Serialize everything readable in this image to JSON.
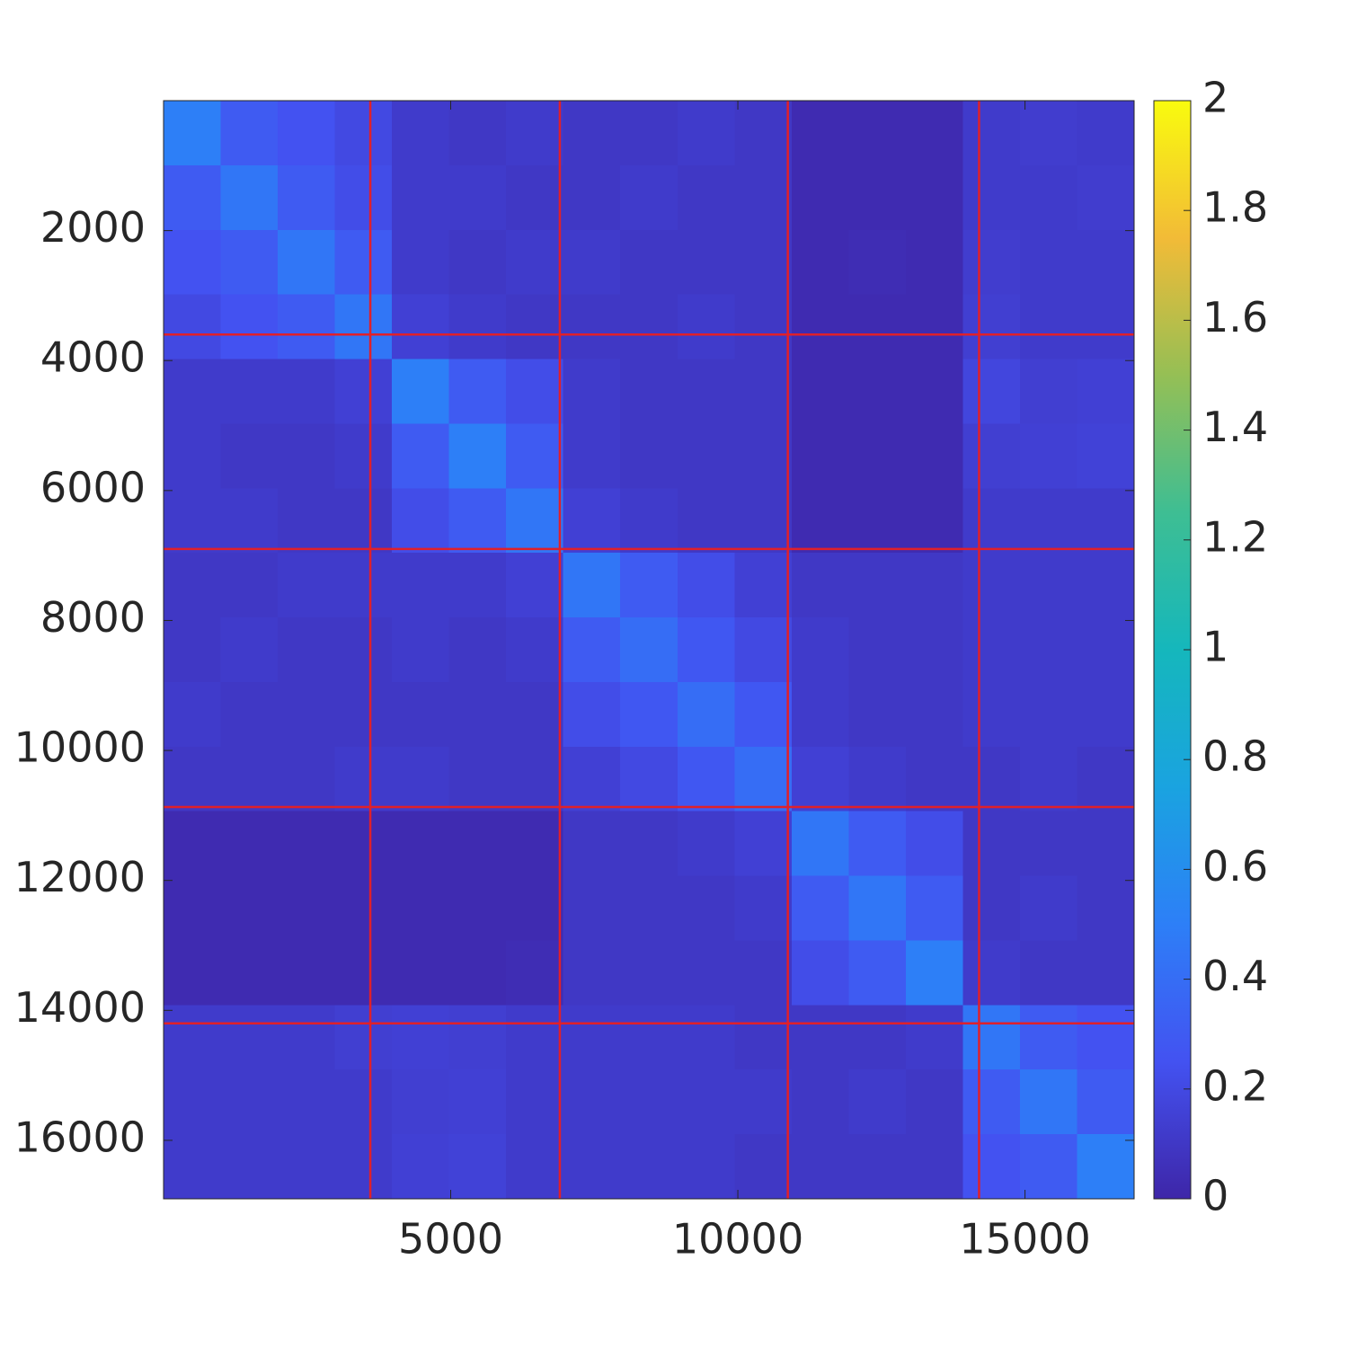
{
  "chart_data": {
    "type": "heatmap",
    "colormap": "parula",
    "xlim": [
      0,
      16900
    ],
    "ylim": [
      0,
      16900
    ],
    "y_reversed": true,
    "xticks": [
      5000,
      10000,
      15000
    ],
    "yticks": [
      2000,
      4000,
      6000,
      8000,
      10000,
      12000,
      14000,
      16000
    ],
    "clim": [
      0,
      2
    ],
    "cticks": [
      0,
      0.2,
      0.4,
      0.6,
      0.8,
      1,
      1.2,
      1.4,
      1.6,
      1.8,
      2
    ],
    "boundaries": [
      3600,
      6900,
      10870,
      14200
    ],
    "boundary_color": "#e0202a",
    "z": [
      [
        0.5,
        0.3,
        0.25,
        0.2,
        0.12,
        0.1,
        0.12,
        0.1,
        0.1,
        0.12,
        0.1,
        0.03,
        0.03,
        0.03,
        0.12,
        0.13,
        0.12
      ],
      [
        0.3,
        0.45,
        0.3,
        0.22,
        0.12,
        0.12,
        0.1,
        0.1,
        0.12,
        0.1,
        0.1,
        0.03,
        0.03,
        0.03,
        0.12,
        0.12,
        0.13
      ],
      [
        0.25,
        0.3,
        0.45,
        0.3,
        0.12,
        0.1,
        0.12,
        0.12,
        0.1,
        0.1,
        0.1,
        0.03,
        0.04,
        0.03,
        0.13,
        0.12,
        0.12
      ],
      [
        0.2,
        0.25,
        0.3,
        0.45,
        0.15,
        0.12,
        0.1,
        0.1,
        0.1,
        0.12,
        0.1,
        0.03,
        0.03,
        0.03,
        0.14,
        0.12,
        0.12
      ],
      [
        0.12,
        0.12,
        0.12,
        0.15,
        0.5,
        0.3,
        0.22,
        0.12,
        0.1,
        0.1,
        0.1,
        0.03,
        0.03,
        0.03,
        0.18,
        0.14,
        0.15
      ],
      [
        0.12,
        0.1,
        0.1,
        0.12,
        0.3,
        0.5,
        0.3,
        0.12,
        0.1,
        0.1,
        0.1,
        0.03,
        0.03,
        0.03,
        0.14,
        0.15,
        0.16
      ],
      [
        0.12,
        0.12,
        0.1,
        0.1,
        0.22,
        0.3,
        0.45,
        0.15,
        0.12,
        0.1,
        0.1,
        0.03,
        0.03,
        0.03,
        0.12,
        0.12,
        0.12
      ],
      [
        0.1,
        0.1,
        0.12,
        0.12,
        0.12,
        0.12,
        0.15,
        0.45,
        0.3,
        0.22,
        0.15,
        0.1,
        0.1,
        0.1,
        0.12,
        0.12,
        0.12
      ],
      [
        0.1,
        0.12,
        0.1,
        0.1,
        0.12,
        0.1,
        0.12,
        0.3,
        0.4,
        0.28,
        0.2,
        0.12,
        0.1,
        0.1,
        0.12,
        0.12,
        0.12
      ],
      [
        0.12,
        0.1,
        0.1,
        0.1,
        0.1,
        0.1,
        0.1,
        0.22,
        0.28,
        0.4,
        0.28,
        0.12,
        0.1,
        0.1,
        0.12,
        0.12,
        0.12
      ],
      [
        0.1,
        0.1,
        0.1,
        0.12,
        0.12,
        0.1,
        0.1,
        0.15,
        0.2,
        0.28,
        0.4,
        0.15,
        0.12,
        0.1,
        0.1,
        0.12,
        0.1
      ],
      [
        0.03,
        0.03,
        0.03,
        0.03,
        0.03,
        0.03,
        0.03,
        0.1,
        0.1,
        0.12,
        0.15,
        0.45,
        0.3,
        0.22,
        0.1,
        0.1,
        0.1
      ],
      [
        0.03,
        0.03,
        0.03,
        0.03,
        0.03,
        0.03,
        0.03,
        0.1,
        0.1,
        0.1,
        0.12,
        0.3,
        0.45,
        0.3,
        0.1,
        0.12,
        0.1
      ],
      [
        0.03,
        0.03,
        0.03,
        0.03,
        0.03,
        0.03,
        0.04,
        0.1,
        0.1,
        0.1,
        0.1,
        0.22,
        0.3,
        0.5,
        0.12,
        0.1,
        0.1
      ],
      [
        0.12,
        0.12,
        0.12,
        0.14,
        0.15,
        0.14,
        0.12,
        0.12,
        0.12,
        0.12,
        0.1,
        0.1,
        0.1,
        0.12,
        0.45,
        0.3,
        0.25
      ],
      [
        0.12,
        0.12,
        0.12,
        0.12,
        0.14,
        0.15,
        0.12,
        0.12,
        0.12,
        0.12,
        0.12,
        0.1,
        0.12,
        0.1,
        0.3,
        0.45,
        0.3
      ],
      [
        0.12,
        0.12,
        0.12,
        0.12,
        0.15,
        0.16,
        0.12,
        0.12,
        0.12,
        0.12,
        0.1,
        0.1,
        0.1,
        0.1,
        0.25,
        0.3,
        0.5
      ]
    ]
  }
}
